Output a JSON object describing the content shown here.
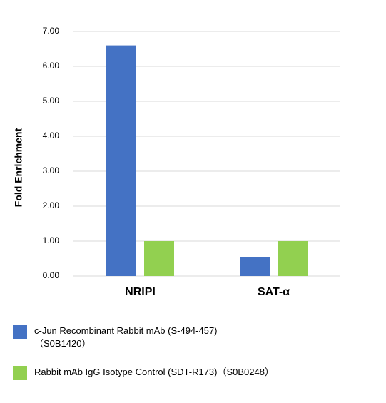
{
  "chart_data": {
    "type": "bar",
    "categories": [
      "NRIPI",
      "SAT-α"
    ],
    "y_label": "Fold Enrichment",
    "series": [
      {
        "name": "c-Jun Recombinant Rabbit mAb (S-494-457)\n（S0B1420）",
        "color": "#4472c4",
        "values": [
          6.6,
          0.55
        ]
      },
      {
        "name": "Rabbit mAb IgG Isotype Control (SDT-R173)（S0B0248）",
        "color": "#92d050",
        "values": [
          1.0,
          1.0
        ]
      }
    ],
    "ylim": [
      0,
      7
    ],
    "yticks": [
      {
        "value": 0,
        "label": "0.00"
      },
      {
        "value": 1,
        "label": "1.00"
      },
      {
        "value": 2,
        "label": "2.00"
      },
      {
        "value": 3,
        "label": "3.00"
      },
      {
        "value": 4,
        "label": "4.00"
      },
      {
        "value": 5,
        "label": "5.00"
      },
      {
        "value": 6,
        "label": "6.00"
      },
      {
        "value": 7,
        "label": "7.00"
      }
    ],
    "grid": true
  }
}
